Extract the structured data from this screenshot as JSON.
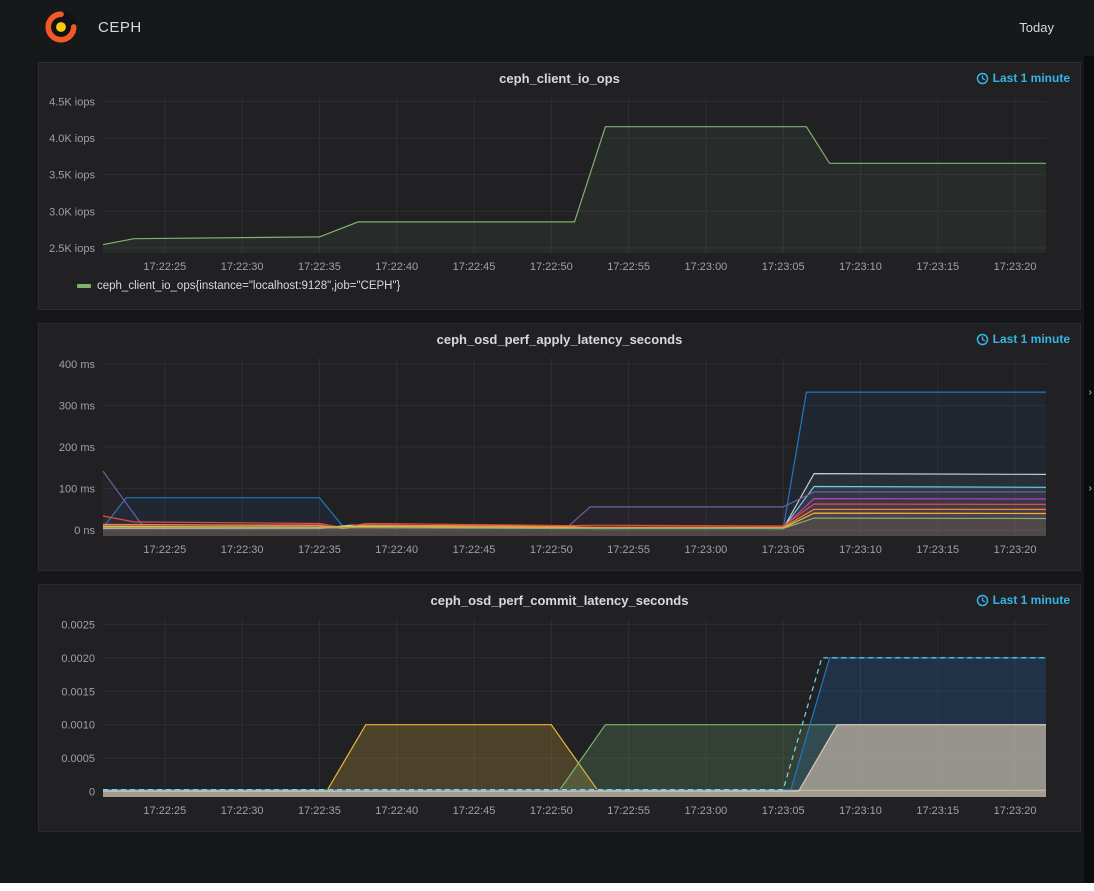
{
  "nav": {
    "brand": "CEPH",
    "time_picker": "Today"
  },
  "colors": {
    "accent_blue": "#33b5e5",
    "page_bg": "#161719",
    "panel_bg": "#212124",
    "axis_text": "#9da2a8",
    "grid": "#2e2f33"
  },
  "chart_data": [
    {
      "type": "area",
      "title": "ceph_client_io_ops",
      "time_window": "Last 1 minute",
      "xlabel": "",
      "ylabel": "iops",
      "legend_visible": true,
      "x_range": [
        1,
        62
      ],
      "x_ticks": [
        {
          "x": 5,
          "label": "17:22:25"
        },
        {
          "x": 10,
          "label": "17:22:30"
        },
        {
          "x": 15,
          "label": "17:22:35"
        },
        {
          "x": 20,
          "label": "17:22:40"
        },
        {
          "x": 25,
          "label": "17:22:45"
        },
        {
          "x": 30,
          "label": "17:22:50"
        },
        {
          "x": 35,
          "label": "17:22:55"
        },
        {
          "x": 40,
          "label": "17:23:00"
        },
        {
          "x": 45,
          "label": "17:23:05"
        },
        {
          "x": 50,
          "label": "17:23:10"
        },
        {
          "x": 55,
          "label": "17:23:15"
        },
        {
          "x": 60,
          "label": "17:23:20"
        }
      ],
      "y_range": [
        2430,
        4560
      ],
      "y_ticks": [
        {
          "y": 2500,
          "label": "2.5K iops"
        },
        {
          "y": 3000,
          "label": "3.0K iops"
        },
        {
          "y": 3500,
          "label": "3.5K iops"
        },
        {
          "y": 4000,
          "label": "4.0K iops"
        },
        {
          "y": 4500,
          "label": "4.5K iops"
        }
      ],
      "series": [
        {
          "name": "ceph_client_io_ops{instance=\"localhost:9128\",job=\"CEPH\"}",
          "color": "#7eb26d",
          "fill_opacity": 0.07,
          "points": [
            [
              1,
              2545
            ],
            [
              3,
              2625
            ],
            [
              15,
              2650
            ],
            [
              17.5,
              2855
            ],
            [
              31.5,
              2855
            ],
            [
              33.5,
              4155
            ],
            [
              46.5,
              4155
            ],
            [
              48,
              3655
            ],
            [
              62,
              3655
            ]
          ]
        }
      ]
    },
    {
      "type": "line",
      "title": "ceph_osd_perf_apply_latency_seconds",
      "time_window": "Last 1 minute",
      "xlabel": "",
      "ylabel": "latency",
      "legend_visible": false,
      "x_range": [
        1,
        62
      ],
      "x_ticks": [
        {
          "x": 5,
          "label": "17:22:25"
        },
        {
          "x": 10,
          "label": "17:22:30"
        },
        {
          "x": 15,
          "label": "17:22:35"
        },
        {
          "x": 20,
          "label": "17:22:40"
        },
        {
          "x": 25,
          "label": "17:22:45"
        },
        {
          "x": 30,
          "label": "17:22:50"
        },
        {
          "x": 35,
          "label": "17:22:55"
        },
        {
          "x": 40,
          "label": "17:23:00"
        },
        {
          "x": 45,
          "label": "17:23:05"
        },
        {
          "x": 50,
          "label": "17:23:10"
        },
        {
          "x": 55,
          "label": "17:23:15"
        },
        {
          "x": 60,
          "label": "17:23:20"
        }
      ],
      "y_range": [
        -14,
        414
      ],
      "y_ticks": [
        {
          "y": 0,
          "label": "0 ns"
        },
        {
          "y": 100,
          "label": "100 ms"
        },
        {
          "y": 200,
          "label": "200 ms"
        },
        {
          "y": 300,
          "label": "300 ms"
        },
        {
          "y": 400,
          "label": "400 ms"
        }
      ],
      "series": [
        {
          "color": "#1f78c1",
          "fill_opacity": 0.08,
          "points": [
            [
              1,
              6
            ],
            [
              2.5,
              78
            ],
            [
              15,
              78
            ],
            [
              16.5,
              10
            ],
            [
              18,
              10
            ],
            [
              31,
              8
            ],
            [
              33,
              4
            ],
            [
              45,
              4
            ],
            [
              46.5,
              332
            ],
            [
              62,
              332
            ]
          ]
        },
        {
          "color": "#6ed0e0",
          "fill_opacity": 0.05,
          "points": [
            [
              1,
              6
            ],
            [
              15,
              5
            ],
            [
              17,
              8
            ],
            [
              31,
              5
            ],
            [
              33,
              4
            ],
            [
              45,
              5
            ],
            [
              47,
              105
            ],
            [
              62,
              103
            ]
          ]
        },
        {
          "color": "#c8ccd1",
          "fill_opacity": 0.05,
          "points": [
            [
              1,
              4
            ],
            [
              15,
              4
            ],
            [
              17,
              12
            ],
            [
              31,
              9
            ],
            [
              33,
              5
            ],
            [
              45,
              4
            ],
            [
              47,
              136
            ],
            [
              62,
              134
            ]
          ]
        },
        {
          "color": "#705da0",
          "fill_opacity": 0.06,
          "points": [
            [
              1,
              142
            ],
            [
              3.5,
              14
            ],
            [
              15,
              9
            ],
            [
              17,
              6
            ],
            [
              31,
              6
            ],
            [
              32.5,
              56
            ],
            [
              45,
              56
            ],
            [
              47,
              92
            ],
            [
              62,
              92
            ]
          ]
        },
        {
          "color": "#ba43a9",
          "fill_opacity": 0.05,
          "points": [
            [
              1,
              12
            ],
            [
              15,
              13
            ],
            [
              16.5,
              4
            ],
            [
              18,
              9
            ],
            [
              31,
              7
            ],
            [
              33,
              7
            ],
            [
              45,
              7
            ],
            [
              47,
              76
            ],
            [
              62,
              75
            ]
          ]
        },
        {
          "color": "#e24d42",
          "fill_opacity": 0.05,
          "points": [
            [
              1,
              34
            ],
            [
              3,
              20
            ],
            [
              15,
              16
            ],
            [
              16.5,
              6
            ],
            [
              18,
              16
            ],
            [
              31,
              11
            ],
            [
              33,
              12
            ],
            [
              45,
              10
            ],
            [
              47,
              63
            ],
            [
              62,
              62
            ]
          ]
        },
        {
          "color": "#ef843c",
          "fill_opacity": 0.05,
          "points": [
            [
              1,
              14
            ],
            [
              15,
              11
            ],
            [
              16.5,
              4
            ],
            [
              18,
              12
            ],
            [
              31,
              8
            ],
            [
              33,
              7
            ],
            [
              45,
              7
            ],
            [
              47,
              50
            ],
            [
              62,
              50
            ]
          ]
        },
        {
          "color": "#eab839",
          "fill_opacity": 0.05,
          "points": [
            [
              1,
              9
            ],
            [
              15,
              7
            ],
            [
              17,
              9
            ],
            [
              31,
              6
            ],
            [
              33,
              5
            ],
            [
              45,
              5
            ],
            [
              47,
              41
            ],
            [
              62,
              40
            ]
          ]
        },
        {
          "color": "#7eb26d",
          "fill_opacity": 0.05,
          "points": [
            [
              1,
              6
            ],
            [
              15,
              5
            ],
            [
              17,
              6
            ],
            [
              31,
              4
            ],
            [
              33,
              4
            ],
            [
              45,
              4
            ],
            [
              47,
              29
            ],
            [
              62,
              28
            ]
          ]
        }
      ]
    },
    {
      "type": "area",
      "title": "ceph_osd_perf_commit_latency_seconds",
      "time_window": "Last 1 minute",
      "xlabel": "",
      "ylabel": "seconds",
      "legend_visible": false,
      "x_range": [
        1,
        62
      ],
      "x_ticks": [
        {
          "x": 5,
          "label": "17:22:25"
        },
        {
          "x": 10,
          "label": "17:22:30"
        },
        {
          "x": 15,
          "label": "17:22:35"
        },
        {
          "x": 20,
          "label": "17:22:40"
        },
        {
          "x": 25,
          "label": "17:22:45"
        },
        {
          "x": 30,
          "label": "17:22:50"
        },
        {
          "x": 35,
          "label": "17:22:55"
        },
        {
          "x": 40,
          "label": "17:23:00"
        },
        {
          "x": 45,
          "label": "17:23:05"
        },
        {
          "x": 50,
          "label": "17:23:10"
        },
        {
          "x": 55,
          "label": "17:23:15"
        },
        {
          "x": 60,
          "label": "17:23:20"
        }
      ],
      "y_range": [
        -8e-05,
        0.00258
      ],
      "y_ticks": [
        {
          "y": 0,
          "label": "0"
        },
        {
          "y": 0.0005,
          "label": "0.0005"
        },
        {
          "y": 0.001,
          "label": "0.0010"
        },
        {
          "y": 0.0015,
          "label": "0.0015"
        },
        {
          "y": 0.002,
          "label": "0.0020"
        },
        {
          "y": 0.0025,
          "label": "0.0025"
        }
      ],
      "series": [
        {
          "color": "#eab839",
          "fill_opacity": 0.22,
          "points": [
            [
              1,
              2e-05
            ],
            [
              15.5,
              2e-05
            ],
            [
              18,
              0.001
            ],
            [
              30,
              0.001
            ],
            [
              33,
              2e-05
            ],
            [
              62,
              2e-05
            ]
          ]
        },
        {
          "color": "#7eb26d",
          "fill_opacity": 0.22,
          "points": [
            [
              1,
              1e-05
            ],
            [
              30.5,
              1e-05
            ],
            [
              33.5,
              0.001
            ],
            [
              62,
              0.001
            ]
          ]
        },
        {
          "color": "#1f78c1",
          "fill_opacity": 0.22,
          "points": [
            [
              1,
              3e-05
            ],
            [
              45.5,
              3e-05
            ],
            [
              48,
              0.002
            ],
            [
              62,
              0.002
            ]
          ]
        },
        {
          "color": "#70dbed",
          "fill_opacity": 0,
          "dash": "5,4",
          "points": [
            [
              1,
              3e-05
            ],
            [
              45,
              3e-05
            ],
            [
              47.5,
              0.002
            ],
            [
              62,
              0.002
            ]
          ]
        },
        {
          "color": "#dcc5b8",
          "fill_opacity": 0.6,
          "points": [
            [
              1,
              1e-05
            ],
            [
              46,
              1e-05
            ],
            [
              48.5,
              0.001
            ],
            [
              62,
              0.001
            ]
          ]
        }
      ]
    }
  ]
}
